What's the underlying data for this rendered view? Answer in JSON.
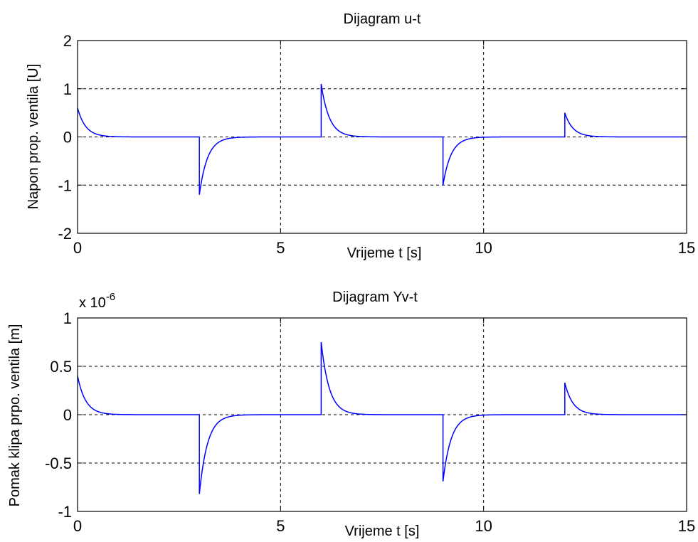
{
  "chart_data": [
    {
      "type": "line",
      "title": "Dijagram u-t",
      "xlabel": "Vrijeme t [s]",
      "ylabel": "Napon prop. ventila [U]",
      "xlim": [
        0,
        15
      ],
      "ylim": [
        -2,
        2
      ],
      "xticks": [
        0,
        5,
        10,
        15
      ],
      "yticks": [
        -2,
        -1,
        0,
        1,
        2
      ],
      "xtick_labels": [
        "0",
        "5",
        "10",
        "15"
      ],
      "ytick_labels": [
        "-2",
        "-1",
        "0",
        "1",
        "2"
      ],
      "grid": true,
      "line_color": "#0000ff",
      "pulses": [
        {
          "t": 0,
          "peak": 0.6,
          "tau": 0.2
        },
        {
          "t": 3,
          "peak": -1.2,
          "tau": 0.2
        },
        {
          "t": 6,
          "peak": 1.1,
          "tau": 0.2
        },
        {
          "t": 9,
          "peak": -1.0,
          "tau": 0.2
        },
        {
          "t": 12,
          "peak": 0.5,
          "tau": 0.2
        }
      ]
    },
    {
      "type": "line",
      "title": "Dijagram Yv-t",
      "xlabel": "Vrijeme t [s]",
      "ylabel": "Pomak klipa prpo. ventila [m]",
      "scale_base": "x 10",
      "scale_exp": "-6",
      "xlim": [
        0,
        15
      ],
      "ylim": [
        -1,
        1
      ],
      "xticks": [
        0,
        5,
        10,
        15
      ],
      "yticks": [
        -1,
        -0.5,
        0,
        0.5,
        1
      ],
      "xtick_labels": [
        "0",
        "5",
        "10",
        "15"
      ],
      "ytick_labels": [
        "-1",
        "-0.5",
        "0",
        "0.5",
        "1"
      ],
      "grid": true,
      "line_color": "#0000ff",
      "pulses": [
        {
          "t": 0,
          "peak": 0.4,
          "tau": 0.2
        },
        {
          "t": 3,
          "peak": -0.82,
          "tau": 0.2
        },
        {
          "t": 6,
          "peak": 0.75,
          "tau": 0.2
        },
        {
          "t": 9,
          "peak": -0.69,
          "tau": 0.2
        },
        {
          "t": 12,
          "peak": 0.33,
          "tau": 0.2
        }
      ]
    }
  ]
}
